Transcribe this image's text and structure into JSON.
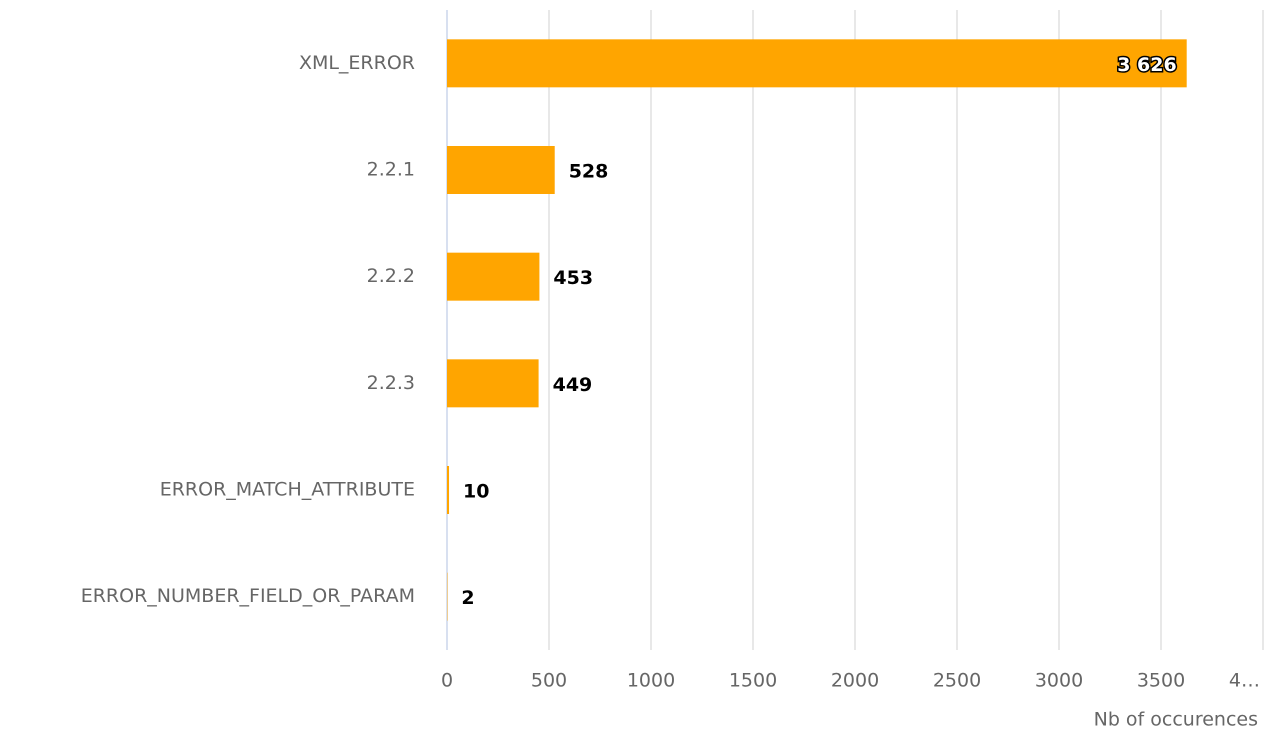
{
  "chart_data": {
    "type": "hbar",
    "categories": [
      "XML_ERROR",
      "2.2.1",
      "2.2.2",
      "2.2.3",
      "ERROR_MATCH_ATTRIBUTE",
      "ERROR_NUMBER_FIELD_OR_PARAM"
    ],
    "values": [
      3626,
      528,
      453,
      449,
      10,
      2
    ],
    "value_labels": [
      "3 626",
      "528",
      "453",
      "449",
      "10",
      "2"
    ],
    "color": "#ffa500",
    "xlim": [
      0,
      4000
    ],
    "xticks": [
      0,
      500,
      1000,
      1500,
      2000,
      2500,
      3000,
      3500,
      {
        "value": 4000,
        "label": "4…"
      }
    ],
    "xlabel": "Nb of occurences",
    "grid": true
  }
}
